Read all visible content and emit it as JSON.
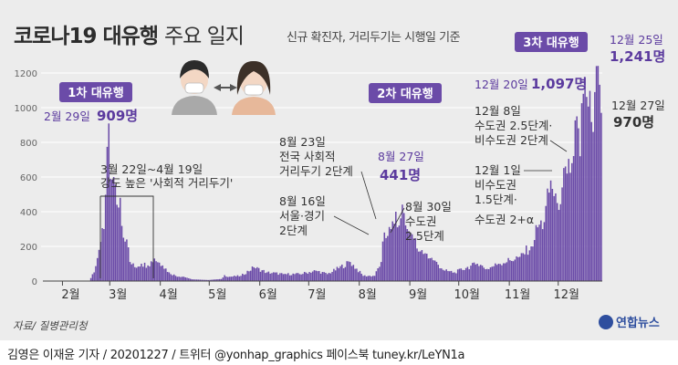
{
  "title": {
    "main": "코로나19 대유행",
    "sub": "주요 일지"
  },
  "subtitle": "신규 확진자, 거리두기는 시행일 기준",
  "source": "자료/ 질병관리청",
  "logo": "연합뉴스",
  "credit": "김영은 이재윤 기자 / 20201227 / 트위터 @yonhap_graphics  페이스북 tuney.kr/LeYN1a",
  "colors": {
    "bar": "#6b4ba8",
    "badge": "#6b4ba8",
    "accent": "#5b3a9e",
    "panel": "#ececec"
  },
  "chart_data": {
    "type": "bar",
    "title": "코로나19 대유행 주요 일지",
    "ylim": [
      0,
      1250
    ],
    "yticks": [
      0,
      200,
      400,
      600,
      800,
      1000,
      1200
    ],
    "x_start": "2020-01-20",
    "x_end": "2020-12-27",
    "month_labels": [
      "2월",
      "3월",
      "4월",
      "5월",
      "6월",
      "7월",
      "8월",
      "9월",
      "10월",
      "11월",
      "12월"
    ],
    "anchors": [
      [
        "2020-01-20",
        1
      ],
      [
        "2020-02-17",
        1
      ],
      [
        "2020-02-20",
        50
      ],
      [
        "2020-02-23",
        180
      ],
      [
        "2020-02-26",
        300
      ],
      [
        "2020-02-29",
        909
      ],
      [
        "2020-03-01",
        590
      ],
      [
        "2020-03-03",
        600
      ],
      [
        "2020-03-05",
        440
      ],
      [
        "2020-03-07",
        480
      ],
      [
        "2020-03-09",
        250
      ],
      [
        "2020-03-11",
        240
      ],
      [
        "2020-03-13",
        110
      ],
      [
        "2020-03-16",
        80
      ],
      [
        "2020-03-20",
        100
      ],
      [
        "2020-03-24",
        90
      ],
      [
        "2020-03-28",
        130
      ],
      [
        "2020-04-02",
        90
      ],
      [
        "2020-04-06",
        50
      ],
      [
        "2020-04-10",
        30
      ],
      [
        "2020-04-15",
        25
      ],
      [
        "2020-04-20",
        10
      ],
      [
        "2020-04-30",
        6
      ],
      [
        "2020-05-08",
        12
      ],
      [
        "2020-05-10",
        34
      ],
      [
        "2020-05-13",
        25
      ],
      [
        "2020-05-20",
        30
      ],
      [
        "2020-05-28",
        79
      ],
      [
        "2020-06-05",
        50
      ],
      [
        "2020-06-15",
        40
      ],
      [
        "2020-06-25",
        40
      ],
      [
        "2020-07-05",
        60
      ],
      [
        "2020-07-12",
        40
      ],
      [
        "2020-07-26",
        110
      ],
      [
        "2020-08-03",
        30
      ],
      [
        "2020-08-10",
        30
      ],
      [
        "2020-08-14",
        110
      ],
      [
        "2020-08-16",
        280
      ],
      [
        "2020-08-18",
        260
      ],
      [
        "2020-08-20",
        300
      ],
      [
        "2020-08-23",
        400
      ],
      [
        "2020-08-25",
        320
      ],
      [
        "2020-08-27",
        441
      ],
      [
        "2020-08-30",
        300
      ],
      [
        "2020-09-02",
        270
      ],
      [
        "2020-09-06",
        170
      ],
      [
        "2020-09-10",
        160
      ],
      [
        "2020-09-15",
        120
      ],
      [
        "2020-09-22",
        60
      ],
      [
        "2020-09-28",
        50
      ],
      [
        "2020-10-05",
        75
      ],
      [
        "2020-10-12",
        100
      ],
      [
        "2020-10-18",
        70
      ],
      [
        "2020-10-25",
        100
      ],
      [
        "2020-11-01",
        120
      ],
      [
        "2020-11-07",
        140
      ],
      [
        "2020-11-14",
        200
      ],
      [
        "2020-11-18",
        310
      ],
      [
        "2020-11-22",
        340
      ],
      [
        "2020-11-26",
        580
      ],
      [
        "2020-11-30",
        450
      ],
      [
        "2020-12-03",
        540
      ],
      [
        "2020-12-06",
        620
      ],
      [
        "2020-12-09",
        680
      ],
      [
        "2020-12-12",
        950
      ],
      [
        "2020-12-14",
        720
      ],
      [
        "2020-12-16",
        1080
      ],
      [
        "2020-12-18",
        1062
      ],
      [
        "2020-12-20",
        1097
      ],
      [
        "2020-12-22",
        860
      ],
      [
        "2020-12-23",
        1090
      ],
      [
        "2020-12-24",
        1240
      ],
      [
        "2020-12-25",
        1241
      ],
      [
        "2020-12-26",
        1132
      ],
      [
        "2020-12-27",
        970
      ]
    ]
  },
  "badges": [
    "1차 대유행",
    "2차 대유행",
    "3차 대유행"
  ],
  "annotations": {
    "peak1": {
      "date": "2월 29일",
      "value": "909명"
    },
    "distancing1": [
      "3월 22일~4월 19일",
      "강도 높은 '사회적 거리두기'"
    ],
    "aug23": [
      "8월 23일",
      "전국 사회적",
      "거리두기 2단계"
    ],
    "aug16": [
      "8월 16일",
      "서울·경기",
      "2단계"
    ],
    "aug27": {
      "date": "8월 27일",
      "value": "441명"
    },
    "aug30": [
      "8월 30일",
      "수도권",
      "2.5단계"
    ],
    "dec1": [
      "12월 1일",
      "비수도권",
      "1.5단계·",
      "수도권 2+α"
    ],
    "dec8": [
      "12월 8일",
      "수도권 2.5단계·",
      "비수도권 2단계"
    ],
    "dec20": {
      "date": "12월 20일",
      "value": "1,097명"
    },
    "dec25": {
      "date": "12월 25일",
      "value": "1,241명"
    },
    "dec27": {
      "date": "12월 27일",
      "value": "970명"
    }
  }
}
